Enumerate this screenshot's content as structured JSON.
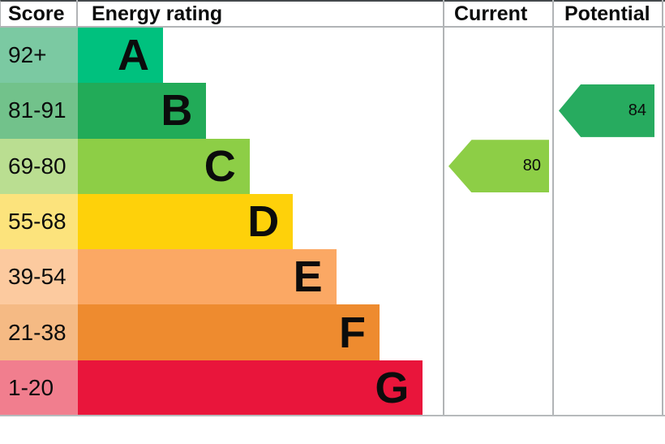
{
  "header": {
    "score": "Score",
    "energy_rating": "Energy rating",
    "current": "Current",
    "potential": "Potential"
  },
  "bands": [
    {
      "letter": "A",
      "score_range": "92+",
      "bar_color": "#00c17e",
      "score_cell_color": "#7bc9a2"
    },
    {
      "letter": "B",
      "score_range": "81-91",
      "bar_color": "#22ab58",
      "score_cell_color": "#72c28b"
    },
    {
      "letter": "C",
      "score_range": "69-80",
      "bar_color": "#8dce46",
      "score_cell_color": "#bade91"
    },
    {
      "letter": "D",
      "score_range": "55-68",
      "bar_color": "#fed10a",
      "score_cell_color": "#fce37c"
    },
    {
      "letter": "E",
      "score_range": "39-54",
      "bar_color": "#fba864",
      "score_cell_color": "#fcca9f"
    },
    {
      "letter": "F",
      "score_range": "21-38",
      "bar_color": "#ee8b2f",
      "score_cell_color": "#f5ba84"
    },
    {
      "letter": "G",
      "score_range": "1-20",
      "bar_color": "#e9153b",
      "score_cell_color": "#f17e8e"
    }
  ],
  "current": {
    "value": 80,
    "band": "C",
    "color": "#8dce46"
  },
  "potential": {
    "value": 84,
    "band": "B",
    "color": "#27ab5f"
  },
  "border_colors": {
    "grid": "#b1b4b6",
    "top": "#44494c"
  },
  "chart_data": {
    "type": "bar",
    "title": "Energy efficiency rating chart (EPC)",
    "columns": [
      "Score",
      "Energy rating",
      "Current",
      "Potential"
    ],
    "categories": [
      "A",
      "B",
      "C",
      "D",
      "E",
      "F",
      "G"
    ],
    "score_ranges": [
      "92+",
      "81-91",
      "69-80",
      "55-68",
      "39-54",
      "21-38",
      "1-20"
    ],
    "bar_rank": [
      1,
      2,
      3,
      4,
      5,
      6,
      7
    ],
    "band_colors": [
      "#00c17e",
      "#22ab58",
      "#8dce46",
      "#fed10a",
      "#fba864",
      "#ee8b2f",
      "#e9153b"
    ],
    "current_rating": {
      "value": 80,
      "band": "C"
    },
    "potential_rating": {
      "value": 84,
      "band": "B"
    },
    "legend_position": "none",
    "grid": false
  }
}
